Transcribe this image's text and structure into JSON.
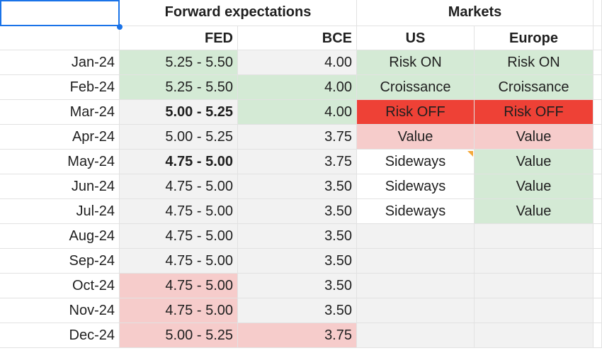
{
  "colors": {
    "green": "#d4ead5",
    "pink": "#f6cccb",
    "red": "#ee4136",
    "gray": "#f2f2f2",
    "white": "#ffffff",
    "selection": "#1a73e8",
    "note": "#f4a83a"
  },
  "header_row1": {
    "forward": "Forward expectations",
    "markets": "Markets"
  },
  "header_row2": {
    "fed": "FED",
    "bce": "BCE",
    "us": "US",
    "europe": "Europe"
  },
  "rows": [
    {
      "month": "Jan-24",
      "fed": "5.25 - 5.50",
      "bce": "4.00",
      "us": "Risk ON",
      "europe": "Risk ON",
      "fed_fill": "green",
      "bce_fill": "gray",
      "us_fill": "green",
      "eu_fill": "green",
      "fed_bold": false
    },
    {
      "month": "Feb-24",
      "fed": "5.25 - 5.50",
      "bce": "4.00",
      "us": "Croissance",
      "europe": "Croissance",
      "fed_fill": "green",
      "bce_fill": "green",
      "us_fill": "green",
      "eu_fill": "green",
      "fed_bold": false
    },
    {
      "month": "Mar-24",
      "fed": "5.00 - 5.25",
      "bce": "4.00",
      "us": "Risk OFF",
      "europe": "Risk OFF",
      "fed_fill": "gray",
      "bce_fill": "green",
      "us_fill": "red",
      "eu_fill": "red",
      "fed_bold": true
    },
    {
      "month": "Apr-24",
      "fed": "5.00 - 5.25",
      "bce": "3.75",
      "us": "Value",
      "europe": "Value",
      "fed_fill": "gray",
      "bce_fill": "gray",
      "us_fill": "pink",
      "eu_fill": "pink",
      "fed_bold": false
    },
    {
      "month": "May-24",
      "fed": "4.75 - 5.00",
      "bce": "3.75",
      "us": "Sideways",
      "europe": "Value",
      "fed_fill": "gray",
      "bce_fill": "gray",
      "us_fill": "white",
      "eu_fill": "green",
      "fed_bold": true
    },
    {
      "month": "Jun-24",
      "fed": "4.75 - 5.00",
      "bce": "3.50",
      "us": "Sideways",
      "europe": "Value",
      "fed_fill": "gray",
      "bce_fill": "gray",
      "us_fill": "white",
      "eu_fill": "green",
      "fed_bold": false
    },
    {
      "month": "Jul-24",
      "fed": "4.75 - 5.00",
      "bce": "3.50",
      "us": "Sideways",
      "europe": "Value",
      "fed_fill": "gray",
      "bce_fill": "gray",
      "us_fill": "white",
      "eu_fill": "green",
      "fed_bold": false
    },
    {
      "month": "Aug-24",
      "fed": "4.75 - 5.00",
      "bce": "3.50",
      "us": "",
      "europe": "",
      "fed_fill": "gray",
      "bce_fill": "gray",
      "us_fill": "gray",
      "eu_fill": "gray",
      "fed_bold": false
    },
    {
      "month": "Sep-24",
      "fed": "4.75 - 5.00",
      "bce": "3.50",
      "us": "",
      "europe": "",
      "fed_fill": "gray",
      "bce_fill": "gray",
      "us_fill": "gray",
      "eu_fill": "gray",
      "fed_bold": false
    },
    {
      "month": "Oct-24",
      "fed": "4.75 - 5.00",
      "bce": "3.50",
      "us": "",
      "europe": "",
      "fed_fill": "pink",
      "bce_fill": "gray",
      "us_fill": "gray",
      "eu_fill": "gray",
      "fed_bold": false
    },
    {
      "month": "Nov-24",
      "fed": "4.75 - 5.00",
      "bce": "3.50",
      "us": "",
      "europe": "",
      "fed_fill": "pink",
      "bce_fill": "gray",
      "us_fill": "gray",
      "eu_fill": "gray",
      "fed_bold": false
    },
    {
      "month": "Dec-24",
      "fed": "5.00 - 5.25",
      "bce": "3.75",
      "us": "",
      "europe": "",
      "fed_fill": "pink",
      "bce_fill": "pink",
      "us_fill": "gray",
      "eu_fill": "gray",
      "fed_bold": false
    }
  ]
}
